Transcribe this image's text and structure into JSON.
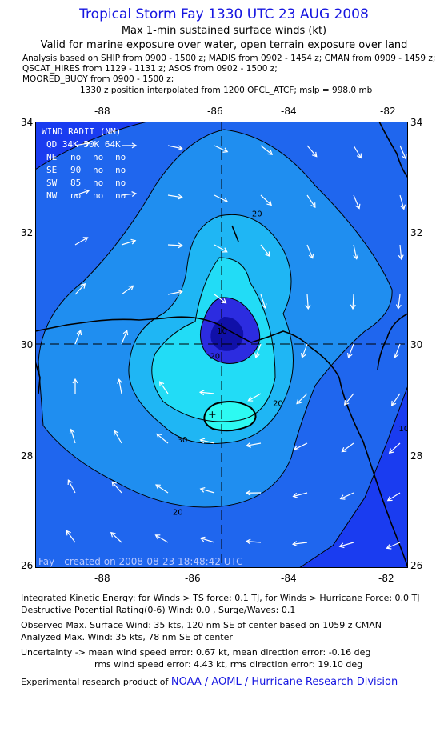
{
  "header": {
    "title": "Tropical Storm Fay 1330 UTC 23 AUG 2008",
    "subtitle": "Max 1-min sustained surface winds (kt)",
    "valid_line": "Valid for marine exposure over water, open terrain exposure over land"
  },
  "sources": [
    "Analysis based on  SHIP from 0900 - 1500 z;  MADIS from 0902 - 1454 z;  CMAN from 0909 - 1459 z;",
    "QSCAT_HIRES from 1129 - 1131 z;  ASOS from 0902 - 1500 z;",
    "MOORED_BUOY from 0900 - 1500 z;"
  ],
  "position_note": "1330 z position interpolated from 1200 OFCL_ATCF; mslp = 998.0 mb",
  "map": {
    "lon_ticks": [
      {
        "value": -88,
        "label": "-88"
      },
      {
        "value": -86,
        "label": "-86"
      },
      {
        "value": -84,
        "label": "-84"
      },
      {
        "value": -82,
        "label": "-82"
      }
    ],
    "lat_ticks": [
      {
        "value": 34,
        "label": "34"
      },
      {
        "value": 32,
        "label": "32"
      },
      {
        "value": 30,
        "label": "30"
      },
      {
        "value": 28,
        "label": "28"
      },
      {
        "value": 26,
        "label": "26"
      }
    ],
    "lon_range": [
      -89.0,
      -81.0
    ],
    "lat_range": [
      26.0,
      34.0
    ],
    "center": {
      "lon": -85.45,
      "lat": 30.0
    },
    "max_wind_marker": {
      "lon": -85.2,
      "lat": 28.75
    },
    "contour_labels": [
      {
        "text": "20",
        "lon": -84.35,
        "lat": 32.3
      },
      {
        "text": "10",
        "lon": -85.1,
        "lat": 30.2
      },
      {
        "text": "20",
        "lon": -85.25,
        "lat": 29.75
      },
      {
        "text": "20",
        "lon": -83.9,
        "lat": 28.9
      },
      {
        "text": "30",
        "lon": -85.95,
        "lat": 28.25
      },
      {
        "text": "20",
        "lon": -86.05,
        "lat": 26.95
      },
      {
        "text": "10",
        "lon": -81.2,
        "lat": 28.45
      }
    ],
    "wind_radii": {
      "title": "WIND RADII (NM)",
      "header": "QD 34K 50K 64K",
      "rows": [
        {
          "quadrant": "NE",
          "r34": "no",
          "r50": "no",
          "r64": "no"
        },
        {
          "quadrant": "SE",
          "r34": "90",
          "r50": "no",
          "r64": "no"
        },
        {
          "quadrant": "SW",
          "r34": "85",
          "r50": "no",
          "r64": "no"
        },
        {
          "quadrant": "NW",
          "r34": "no",
          "r50": "no",
          "r64": "no"
        }
      ]
    },
    "created_label": "Fay - created on 2008-08-23 18:48:42 UTC",
    "colors": {
      "outer_0": "#1a3cf0",
      "band_10": "#1f66ee",
      "band_20": "#1f8ef0",
      "band_30": "#1fb6f4",
      "band_40": "#22dcf6",
      "band_50": "#2dfaf2",
      "low_core": "#2c2ce0",
      "calm_eye": "#1010a8",
      "coast": "#000000",
      "arrows": "#ffffff"
    }
  },
  "footer": {
    "ike_line": "Integrated Kinetic Energy:  for Winds > TS force: 0.1 TJ,  for Winds > Hurricane Force: 0.0 TJ",
    "dp_line": "Destructive Potential Rating(0-6)   Wind: 0.0 , Surge/Waves: 0.1",
    "obs_line": "Observed Max. Surface Wind: 35 kts, 120 nm SE of center based on 1059 z CMAN",
    "ana_line": "Analyzed Max. Wind: 35 kts, 78 nm SE of center",
    "unc_line1": "Uncertainty -> mean wind speed error: 0.67 kt,   mean direction error:  -0.16 deg",
    "unc_line2": "rms wind speed error: 4.43 kt,   rms direction error: 19.10 deg",
    "credit_prefix": "Experimental research product of ",
    "credit_org": "NOAA / AOML / Hurricane Research Division"
  }
}
